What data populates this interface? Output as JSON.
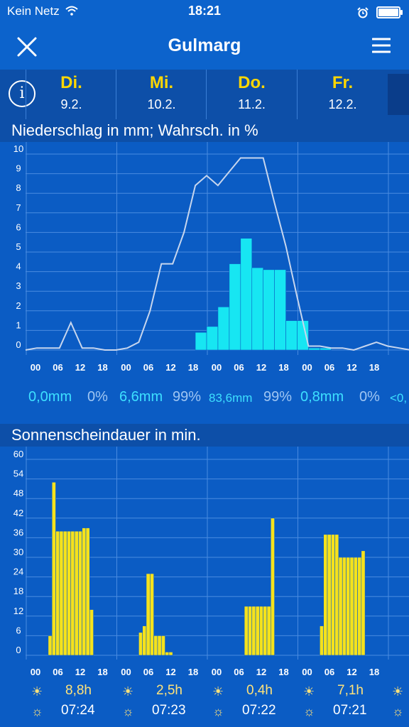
{
  "status": {
    "carrier": "Kein Netz",
    "time": "18:21"
  },
  "header": {
    "title": "Gulmarg"
  },
  "days": [
    {
      "name": "Di.",
      "date": "9.2."
    },
    {
      "name": "Mi.",
      "date": "10.2."
    },
    {
      "name": "Do.",
      "date": "11.2."
    },
    {
      "name": "Fr.",
      "date": "12.2."
    }
  ],
  "precip_section": {
    "title": "Niederschlag in mm; Wahrsch. in %"
  },
  "sun_section": {
    "title": "Sonnenscheindauer in min."
  },
  "hour_labels": [
    "00",
    "06",
    "12",
    "18"
  ],
  "precip_summary": [
    {
      "mm": "0,0mm",
      "pct": "0%"
    },
    {
      "mm": "6,6mm",
      "pct": "99%"
    },
    {
      "mm": "83,6mm",
      "pct": "99%"
    },
    {
      "mm": "0,8mm",
      "pct": "0%"
    },
    {
      "mm": "<0,",
      "pct": ""
    }
  ],
  "sun_summary": [
    {
      "hours": "8,8h",
      "sunrise": "07:24"
    },
    {
      "hours": "2,5h",
      "sunrise": "07:23"
    },
    {
      "hours": "0,4h",
      "sunrise": "07:22"
    },
    {
      "hours": "7,1h",
      "sunrise": "07:21"
    }
  ],
  "icons": {
    "close": "close-icon",
    "menu": "hamburger-menu-icon",
    "info": "info-icon",
    "sun": "sun-icon",
    "sunrise": "sunrise-icon",
    "wifi": "wifi-icon",
    "alarm": "alarm-icon",
    "battery": "battery-icon"
  },
  "colors": {
    "bar_precip": "#17e6f2",
    "bar_sun": "#f5e21c",
    "line": "#c7d6ee",
    "bg": "#0b5cc4"
  },
  "chart_data": [
    {
      "type": "bar",
      "title": "Niederschlag in mm; Wahrsch. in %",
      "ylim": [
        0,
        10
      ],
      "yticks": [
        0,
        1,
        2,
        3,
        4,
        5,
        6,
        7,
        8,
        9,
        10
      ],
      "x_unit": "hours from Di. 00:00 (3h steps)",
      "bars": [
        {
          "x": 45,
          "y": 0.9
        },
        {
          "x": 48,
          "y": 1.2
        },
        {
          "x": 51,
          "y": 2.2
        },
        {
          "x": 54,
          "y": 4.4
        },
        {
          "x": 57,
          "y": 5.7
        },
        {
          "x": 60,
          "y": 4.2
        },
        {
          "x": 63,
          "y": 4.1
        },
        {
          "x": 66,
          "y": 4.1
        },
        {
          "x": 69,
          "y": 1.5
        },
        {
          "x": 72,
          "y": 1.5
        },
        {
          "x": 75,
          "y": 0.1
        },
        {
          "x": 78,
          "y": 0.1
        }
      ],
      "probability_line": {
        "ylim": [
          0,
          100
        ],
        "x": [
          0,
          3,
          6,
          9,
          12,
          15,
          18,
          21,
          24,
          27,
          30,
          33,
          36,
          39,
          42,
          45,
          48,
          51,
          54,
          57,
          60,
          63,
          66,
          69,
          72,
          75,
          78,
          81,
          84,
          87,
          90,
          93,
          96,
          99,
          102,
          105
        ],
        "y": [
          0,
          1,
          1,
          1,
          14,
          1,
          1,
          0,
          0,
          1,
          4,
          20,
          44,
          44,
          60,
          84,
          89,
          84,
          91,
          98,
          98,
          98,
          75,
          53,
          27,
          2,
          2,
          1,
          1,
          0,
          2,
          4,
          2,
          1,
          0,
          0
        ]
      }
    },
    {
      "type": "bar",
      "title": "Sonnenscheindauer in min.",
      "ylim": [
        0,
        60
      ],
      "yticks": [
        0,
        6,
        12,
        18,
        24,
        30,
        36,
        42,
        48,
        54,
        60
      ],
      "x_unit": "hours from Di. 00:00 (1h steps)",
      "bars": [
        {
          "x": 6,
          "y": 6
        },
        {
          "x": 7,
          "y": 53
        },
        {
          "x": 8,
          "y": 38
        },
        {
          "x": 9,
          "y": 38
        },
        {
          "x": 10,
          "y": 38
        },
        {
          "x": 11,
          "y": 38
        },
        {
          "x": 12,
          "y": 38
        },
        {
          "x": 13,
          "y": 38
        },
        {
          "x": 14,
          "y": 38
        },
        {
          "x": 15,
          "y": 39
        },
        {
          "x": 16,
          "y": 39
        },
        {
          "x": 17,
          "y": 14
        },
        {
          "x": 30,
          "y": 7
        },
        {
          "x": 31,
          "y": 9
        },
        {
          "x": 32,
          "y": 25
        },
        {
          "x": 33,
          "y": 25
        },
        {
          "x": 34,
          "y": 6
        },
        {
          "x": 35,
          "y": 6
        },
        {
          "x": 36,
          "y": 6
        },
        {
          "x": 37,
          "y": 1
        },
        {
          "x": 38,
          "y": 1
        },
        {
          "x": 58,
          "y": 15
        },
        {
          "x": 59,
          "y": 15
        },
        {
          "x": 60,
          "y": 15
        },
        {
          "x": 61,
          "y": 15
        },
        {
          "x": 62,
          "y": 15
        },
        {
          "x": 63,
          "y": 15
        },
        {
          "x": 64,
          "y": 15
        },
        {
          "x": 65,
          "y": 42
        },
        {
          "x": 78,
          "y": 9
        },
        {
          "x": 79,
          "y": 37
        },
        {
          "x": 80,
          "y": 37
        },
        {
          "x": 81,
          "y": 37
        },
        {
          "x": 82,
          "y": 37
        },
        {
          "x": 83,
          "y": 30
        },
        {
          "x": 84,
          "y": 30
        },
        {
          "x": 85,
          "y": 30
        },
        {
          "x": 86,
          "y": 30
        },
        {
          "x": 87,
          "y": 30
        },
        {
          "x": 88,
          "y": 30
        },
        {
          "x": 89,
          "y": 32
        }
      ]
    }
  ]
}
